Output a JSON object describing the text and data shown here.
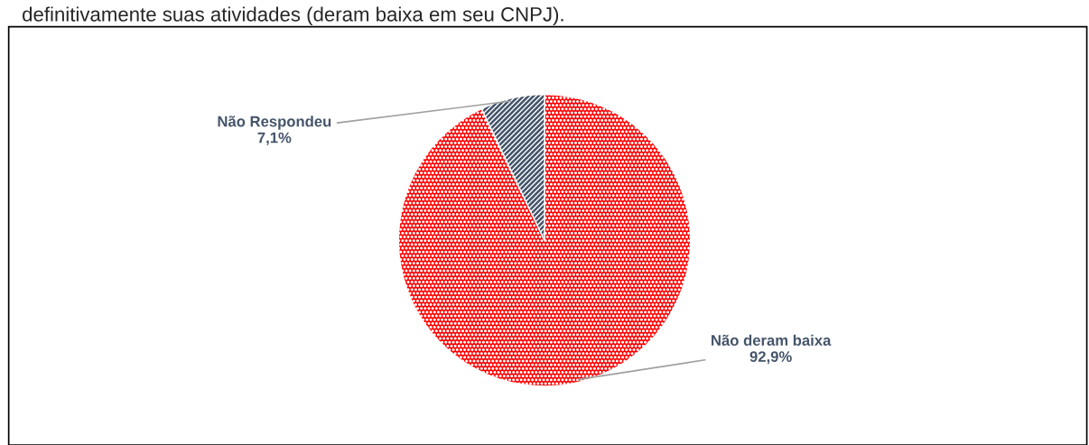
{
  "chart_data": {
    "type": "pie",
    "title": "definitivamente suas atividades (deram baixa em seu CNPJ).",
    "categories": [
      "Não deram baixa",
      "Não Respondeu"
    ],
    "values": [
      92.9,
      7.1
    ],
    "colors": [
      "#ff0000",
      "#44546a"
    ],
    "value_labels": [
      "92,9%",
      "7,1%"
    ]
  }
}
